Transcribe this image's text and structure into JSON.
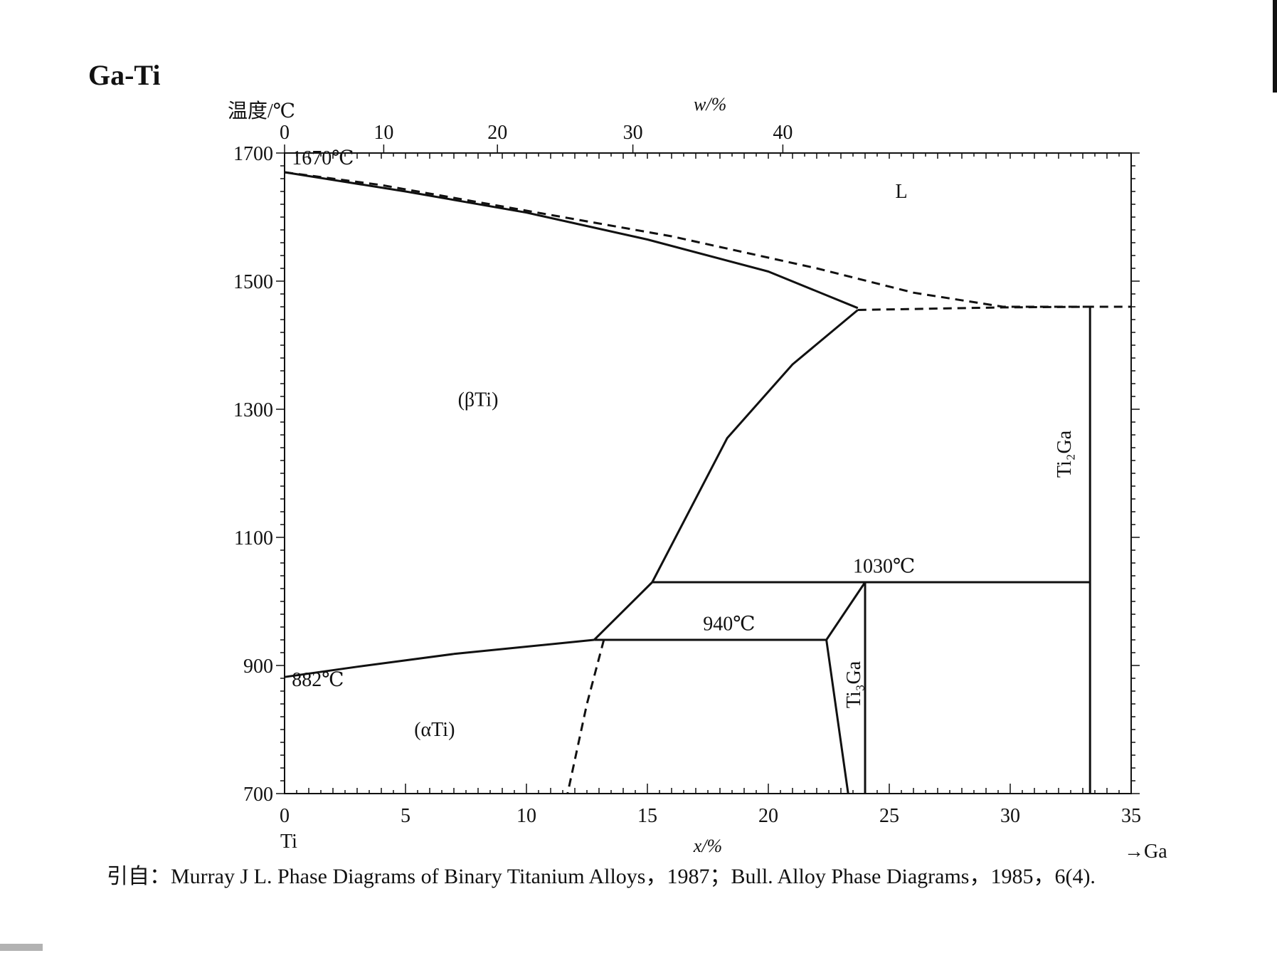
{
  "title": "Ga-Ti",
  "citation": "引自：Murray J L. Phase Diagrams of Binary Titanium Alloys，1987；Bull. Alloy Phase Diagrams，1985，6(4).",
  "chart_data": {
    "type": "phase-diagram",
    "title": "Ga-Ti",
    "ylabel": "温度/℃",
    "xlabel_bottom": "x/%",
    "xlabel_top": "w/%",
    "ylim": [
      700,
      1700
    ],
    "xlim": [
      0,
      35
    ],
    "y_ticks": [
      700,
      900,
      1100,
      1300,
      1500,
      1700
    ],
    "x_ticks": [
      0,
      5,
      10,
      15,
      20,
      25,
      30,
      35
    ],
    "top_axis_ticks": [
      {
        "label": "0",
        "x": 0
      },
      {
        "label": "10",
        "x": 4.1
      },
      {
        "label": "20",
        "x": 8.8
      },
      {
        "label": "30",
        "x": 14.4
      },
      {
        "label": "40",
        "x": 20.6
      }
    ],
    "left_element": "Ti",
    "right_element": "→Ga",
    "phase_labels": [
      {
        "text": "L",
        "x": 25.5,
        "y": 1630
      },
      {
        "text": "(βTi)",
        "x": 8,
        "y": 1305
      },
      {
        "text": "(αTi)",
        "x": 6.2,
        "y": 790
      },
      {
        "text": "Ti₂Ga",
        "x": 32.5,
        "y": 1230,
        "rotated": true
      },
      {
        "text": "Ti₃Ga",
        "x": 23.8,
        "y": 870,
        "rotated": true
      }
    ],
    "temperature_annotations": [
      {
        "text": "1670℃",
        "x": 0.3,
        "y": 1682
      },
      {
        "text": "1030℃",
        "x": 23.5,
        "y": 1045
      },
      {
        "text": "940℃",
        "x": 17.3,
        "y": 955
      },
      {
        "text": "882℃",
        "x": 0.3,
        "y": 868
      }
    ],
    "lines": [
      {
        "name": "beta-liquidus",
        "style": "dashed",
        "points": [
          [
            0,
            1670
          ],
          [
            4,
            1650
          ],
          [
            10,
            1610
          ],
          [
            16,
            1570
          ],
          [
            22,
            1520
          ],
          [
            26,
            1482
          ],
          [
            29.7,
            1460
          ],
          [
            33.3,
            1460
          ]
        ]
      },
      {
        "name": "beta-solidus",
        "style": "solid",
        "points": [
          [
            0,
            1670
          ],
          [
            5,
            1640
          ],
          [
            10,
            1607
          ],
          [
            15,
            1565
          ],
          [
            20,
            1515
          ],
          [
            23.7,
            1458
          ]
        ]
      },
      {
        "name": "peritectic-1460",
        "style": "dashed",
        "points": [
          [
            23.7,
            1455
          ],
          [
            29.7,
            1459
          ],
          [
            33.3,
            1460
          ],
          [
            35,
            1460
          ]
        ]
      },
      {
        "name": "beta-transus-high",
        "style": "solid",
        "points": [
          [
            23.7,
            1455
          ],
          [
            21,
            1370
          ],
          [
            18.3,
            1255
          ],
          [
            15.2,
            1030
          ]
        ]
      },
      {
        "name": "eutectoid-1030",
        "style": "solid",
        "points": [
          [
            15.2,
            1030
          ],
          [
            33.3,
            1030
          ]
        ]
      },
      {
        "name": "beta-transus-low",
        "style": "solid",
        "points": [
          [
            15.2,
            1030
          ],
          [
            12.8,
            940
          ]
        ]
      },
      {
        "name": "alpha-beta-transus",
        "style": "solid",
        "points": [
          [
            0,
            882
          ],
          [
            3,
            898
          ],
          [
            7,
            918
          ],
          [
            12.8,
            940
          ]
        ]
      },
      {
        "name": "eutectoid-940",
        "style": "solid",
        "points": [
          [
            12.8,
            940
          ],
          [
            22.4,
            940
          ]
        ]
      },
      {
        "name": "alpha-solvus",
        "style": "dashed",
        "points": [
          [
            13.2,
            940
          ],
          [
            12.5,
            840
          ],
          [
            11.7,
            700
          ]
        ]
      },
      {
        "name": "ti3ga-left-lower",
        "style": "solid",
        "points": [
          [
            22.4,
            940
          ],
          [
            23.3,
            700
          ]
        ]
      },
      {
        "name": "ti3ga-left-upper",
        "style": "solid",
        "points": [
          [
            22.4,
            940
          ],
          [
            24.0,
            1030
          ]
        ]
      },
      {
        "name": "ti3ga-right",
        "style": "solid",
        "points": [
          [
            24.0,
            1030
          ],
          [
            24.0,
            700
          ]
        ]
      },
      {
        "name": "ti2ga",
        "style": "solid",
        "points": [
          [
            33.3,
            1460
          ],
          [
            33.3,
            700
          ]
        ]
      }
    ]
  }
}
